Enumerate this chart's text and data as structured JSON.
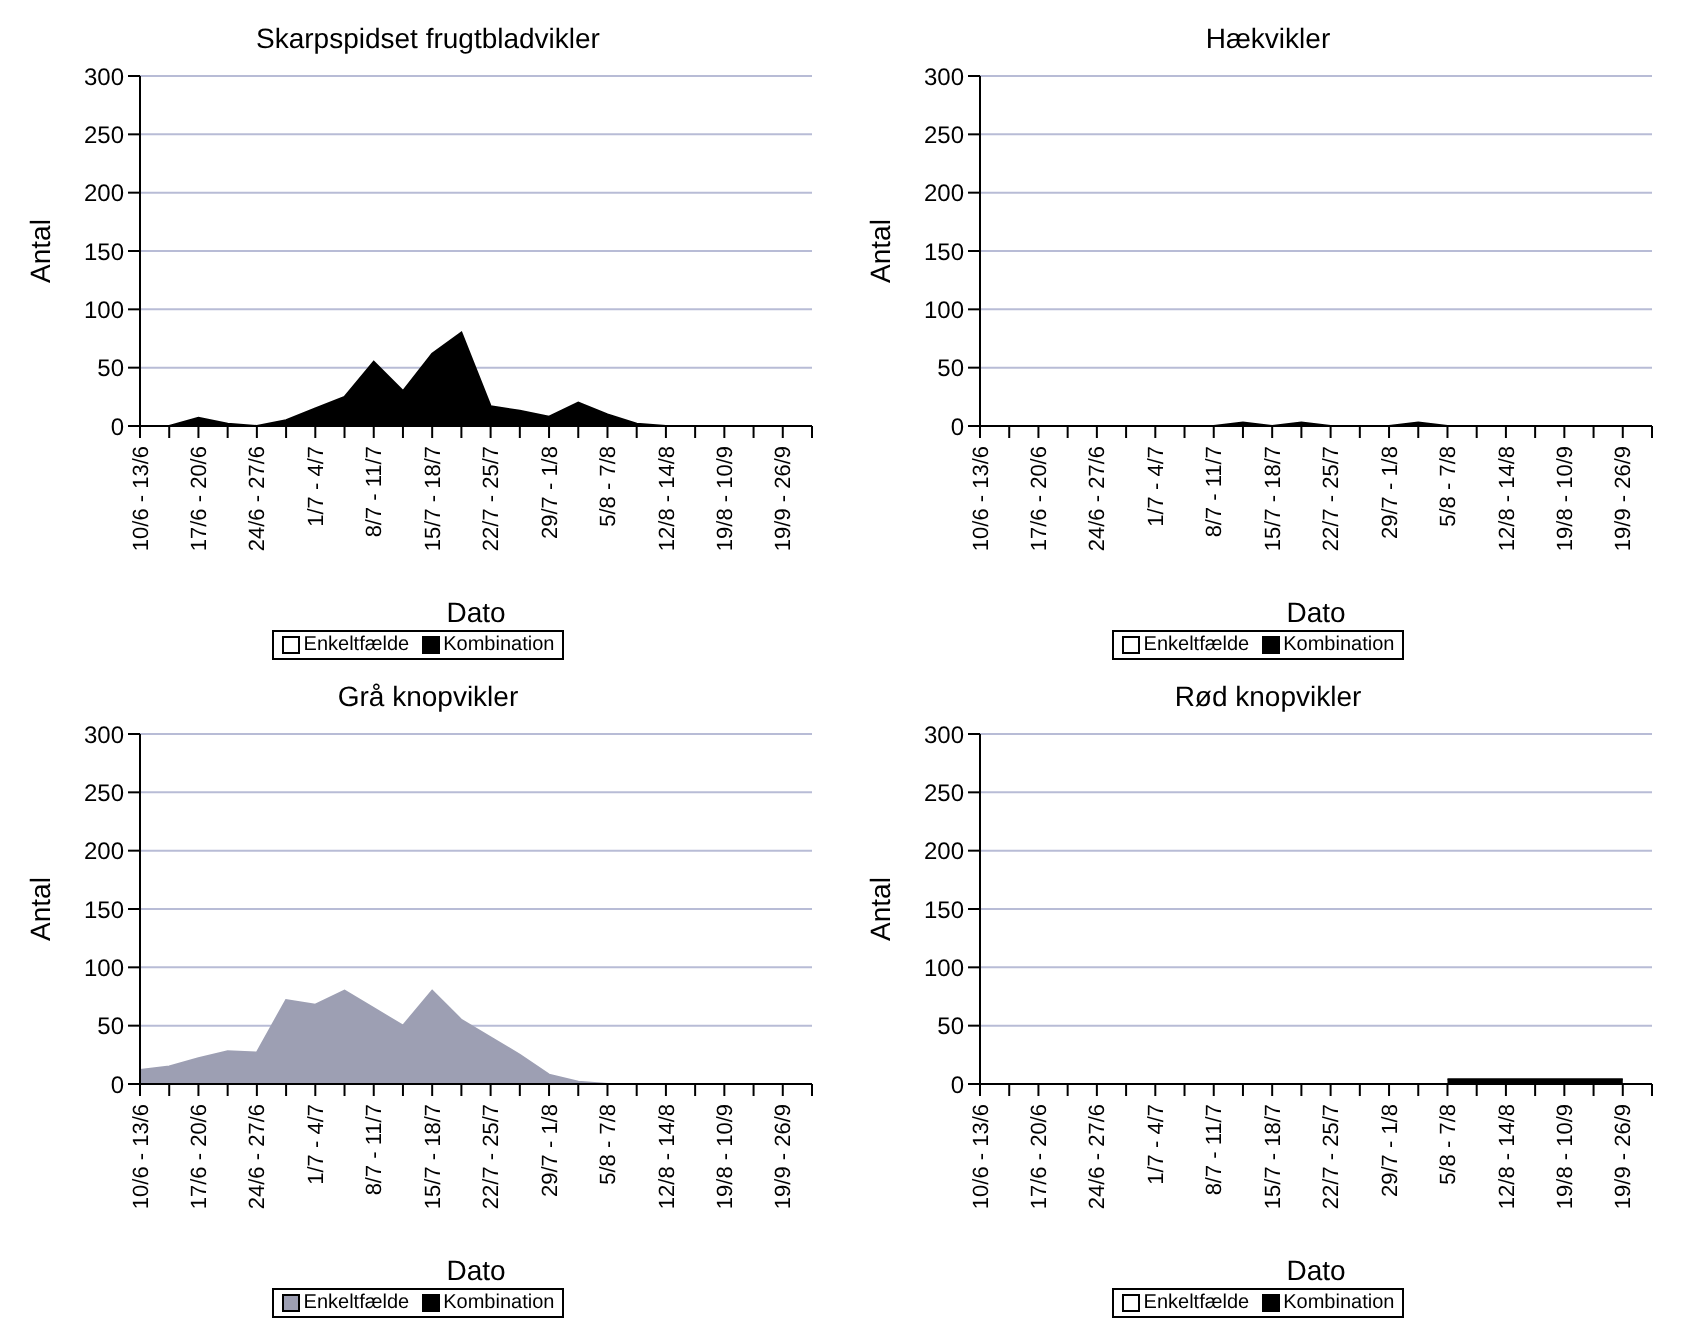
{
  "chart_data": [
    {
      "type": "area",
      "title": "Skarpspidset frugtbladvikler",
      "xlabel": "Dato",
      "ylabel": "Antal",
      "categories": [
        "10/6 - 13/6",
        null,
        "17/6 - 20/6",
        null,
        "24/6 - 27/6",
        null,
        "1/7 - 4/7",
        null,
        "8/7 - 11/7",
        null,
        "15/7 - 18/7",
        null,
        "22/7 - 25/7",
        null,
        "29/7 - 1/8",
        null,
        "5/8 - 7/8",
        null,
        "12/8 - 14/8",
        null,
        "19/8 - 10/9",
        null,
        "19/9 - 26/9",
        null
      ],
      "series": [
        {
          "name": "Enkeltfælde",
          "color": "#ffffff",
          "values": [
            null,
            null,
            null,
            null,
            null,
            null,
            null,
            null,
            null,
            null,
            null,
            null,
            null,
            null,
            null,
            null,
            null,
            null,
            null,
            null,
            null,
            null,
            null,
            null
          ]
        },
        {
          "name": "Kombination",
          "color": "#000000",
          "values": [
            0,
            0,
            7,
            2,
            0,
            5,
            15,
            25,
            55,
            30,
            62,
            80,
            17,
            13,
            8,
            20,
            10,
            2,
            0,
            0,
            0,
            0,
            0,
            0
          ]
        }
      ],
      "ylim": [
        0,
        300
      ],
      "yticks": [
        0,
        50,
        100,
        150,
        200,
        250,
        300
      ],
      "grid": "y",
      "legend": "bottom"
    },
    {
      "type": "area",
      "title": "Hækvikler",
      "xlabel": "Dato",
      "ylabel": "Antal",
      "categories": [
        "10/6 - 13/6",
        null,
        "17/6 - 20/6",
        null,
        "24/6 - 27/6",
        null,
        "1/7 - 4/7",
        null,
        "8/7 - 11/7",
        null,
        "15/7 - 18/7",
        null,
        "22/7 - 25/7",
        null,
        "29/7 - 1/8",
        null,
        "5/8 - 7/8",
        null,
        "12/8 - 14/8",
        null,
        "19/8 - 10/9",
        null,
        "19/9 - 26/9",
        null
      ],
      "series": [
        {
          "name": "Enkeltfælde",
          "color": "#ffffff",
          "values": [
            null,
            null,
            null,
            null,
            null,
            null,
            null,
            null,
            null,
            null,
            null,
            null,
            null,
            null,
            null,
            null,
            null,
            null,
            null,
            null,
            null,
            null,
            null,
            null
          ]
        },
        {
          "name": "Kombination",
          "color": "#000000",
          "values": [
            0,
            0,
            0,
            0,
            0,
            0,
            0,
            0,
            0,
            3,
            0,
            3,
            0,
            0,
            0,
            3,
            0,
            0,
            0,
            0,
            0,
            0,
            0,
            0
          ]
        }
      ],
      "ylim": [
        0,
        300
      ],
      "yticks": [
        0,
        50,
        100,
        150,
        200,
        250,
        300
      ],
      "grid": "y",
      "legend": "bottom"
    },
    {
      "type": "area",
      "title": "Grå knopvikler",
      "xlabel": "Dato",
      "ylabel": "Antal",
      "categories": [
        "10/6 - 13/6",
        null,
        "17/6 - 20/6",
        null,
        "24/6 - 27/6",
        null,
        "1/7 - 4/7",
        null,
        "8/7 - 11/7",
        null,
        "15/7 - 18/7",
        null,
        "22/7 - 25/7",
        null,
        "29/7 - 1/8",
        null,
        "5/8 - 7/8",
        null,
        "12/8 - 14/8",
        null,
        "19/8 - 10/9",
        null,
        "19/9 - 26/9",
        null
      ],
      "series": [
        {
          "name": "Enkeltfælde",
          "color": "#9d9fb3",
          "values": [
            12,
            15,
            22,
            28,
            27,
            72,
            68,
            80,
            65,
            50,
            80,
            55,
            40,
            25,
            8,
            2,
            0,
            0,
            0,
            0,
            0,
            0,
            0,
            0
          ]
        },
        {
          "name": "Kombination",
          "color": "#000000",
          "values": [
            null,
            null,
            null,
            null,
            null,
            null,
            null,
            null,
            null,
            null,
            null,
            null,
            null,
            null,
            null,
            null,
            null,
            null,
            null,
            null,
            null,
            null,
            null,
            null
          ]
        }
      ],
      "ylim": [
        0,
        300
      ],
      "yticks": [
        0,
        50,
        100,
        150,
        200,
        250,
        300
      ],
      "grid": "y",
      "legend": "bottom"
    },
    {
      "type": "area",
      "title": "Rød knopvikler",
      "xlabel": "Dato",
      "ylabel": "Antal",
      "categories": [
        "10/6 - 13/6",
        null,
        "17/6 - 20/6",
        null,
        "24/6 - 27/6",
        null,
        "1/7 - 4/7",
        null,
        "8/7 - 11/7",
        null,
        "15/7 - 18/7",
        null,
        "22/7 - 25/7",
        null,
        "29/7 - 1/8",
        null,
        "5/8 - 7/8",
        null,
        "12/8 - 14/8",
        null,
        "19/8 - 10/9",
        null,
        "19/9 - 26/9",
        null
      ],
      "series": [
        {
          "name": "Enkeltfælde",
          "color": "#ffffff",
          "values": [
            null,
            null,
            null,
            null,
            null,
            null,
            null,
            null,
            null,
            null,
            null,
            null,
            null,
            null,
            null,
            null,
            null,
            null,
            null,
            null,
            null,
            null,
            null,
            null
          ]
        },
        {
          "name": "Kombination",
          "color": "#000000",
          "values": [
            null,
            null,
            null,
            null,
            null,
            null,
            null,
            null,
            null,
            null,
            null,
            null,
            null,
            null,
            null,
            null,
            4,
            4,
            4,
            4,
            4,
            4,
            4,
            null
          ]
        }
      ],
      "ylim": [
        0,
        300
      ],
      "yticks": [
        0,
        50,
        100,
        150,
        200,
        250,
        300
      ],
      "grid": "y",
      "legend": "bottom"
    }
  ]
}
